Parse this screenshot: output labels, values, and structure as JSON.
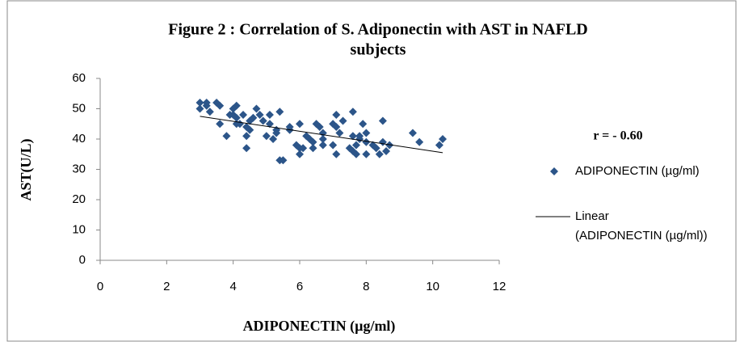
{
  "chart_data": {
    "type": "scatter",
    "title": [
      "Figure 2 : Correlation of S. Adiponectin with AST in NAFLD",
      "subjects"
    ],
    "x_label": "ADIPONECTIN (µg/ml)",
    "y_label": "AST(U/L)",
    "annotation": "r =  - 0.60",
    "xlim": [
      0,
      12
    ],
    "xticks": [
      0,
      2,
      4,
      6,
      8,
      10,
      12
    ],
    "ylim": [
      0,
      60
    ],
    "yticks": [
      0,
      10,
      20,
      30,
      40,
      50,
      60
    ],
    "legend_position": "right",
    "series": [
      {
        "name": "ADIPONECTIN (µg/ml)",
        "color": "#2c5589",
        "x": [
          3.0,
          3.0,
          3.2,
          3.2,
          3.3,
          3.5,
          3.6,
          3.6,
          3.8,
          3.9,
          4.0,
          4.0,
          4.1,
          4.1,
          4.1,
          4.2,
          4.3,
          4.4,
          4.4,
          4.4,
          4.5,
          4.5,
          4.6,
          4.7,
          4.8,
          4.9,
          5.0,
          5.1,
          5.1,
          5.2,
          5.3,
          5.3,
          5.4,
          5.4,
          5.5,
          5.7,
          5.7,
          5.9,
          6.0,
          6.0,
          6.0,
          6.1,
          6.2,
          6.3,
          6.4,
          6.4,
          6.5,
          6.6,
          6.7,
          6.7,
          6.7,
          7.0,
          7.0,
          7.1,
          7.1,
          7.1,
          7.2,
          7.3,
          7.5,
          7.6,
          7.6,
          7.6,
          7.7,
          7.7,
          7.8,
          7.8,
          7.9,
          8.0,
          8.0,
          8.0,
          8.2,
          8.3,
          8.4,
          8.5,
          8.5,
          8.6,
          8.7,
          9.4,
          9.6,
          10.2,
          10.3
        ],
        "values": [
          52,
          50,
          52,
          51,
          49,
          52,
          51,
          45,
          41,
          48,
          48,
          50,
          51,
          47,
          45,
          45,
          48,
          44,
          37,
          41,
          43,
          46,
          47,
          50,
          48,
          46,
          41,
          45,
          48,
          40,
          43,
          42,
          49,
          33,
          33,
          44,
          43,
          38,
          35,
          37,
          45,
          37,
          41,
          40,
          39,
          37,
          45,
          44,
          42,
          38,
          40,
          45,
          38,
          48,
          44,
          35,
          42,
          46,
          37,
          49,
          41,
          36,
          35,
          38,
          40,
          41,
          45,
          42,
          39,
          35,
          38,
          37,
          35,
          46,
          39,
          36,
          38,
          42,
          39,
          38,
          40
        ]
      },
      {
        "name": "Linear (ADIPONECTIN (µg/ml))",
        "color": "#000000",
        "x": [
          3.0,
          10.3
        ],
        "values": [
          47.5,
          35.5
        ]
      }
    ]
  }
}
